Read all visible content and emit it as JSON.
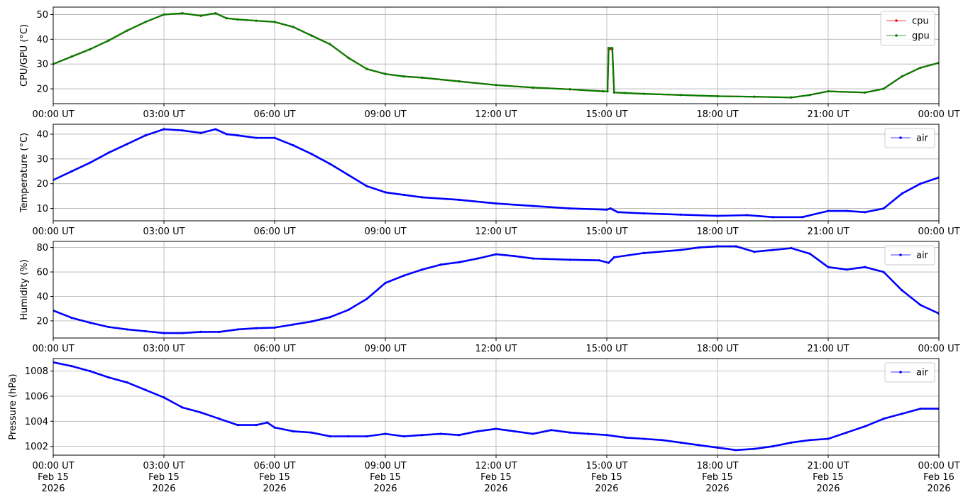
{
  "chart_data": [
    {
      "type": "line",
      "ylabel": "CPU/GPU (°C)",
      "ylim": [
        14,
        53
      ],
      "yticks": [
        20,
        30,
        40,
        50
      ],
      "grid": true,
      "legend_position": "top-right",
      "xlim_hours": [
        0,
        24
      ],
      "xtick_labels": [
        "00:00 UT",
        "03:00 UT",
        "06:00 UT",
        "09:00 UT",
        "12:00 UT",
        "15:00 UT",
        "18:00 UT",
        "21:00 UT",
        "00:00 UT"
      ],
      "series": [
        {
          "name": "cpu",
          "color": "#ff0000",
          "points": [
            [
              0,
              30
            ],
            [
              0.5,
              33
            ],
            [
              1,
              36
            ],
            [
              1.5,
              39.5
            ],
            [
              2,
              43.5
            ],
            [
              2.5,
              47
            ],
            [
              3,
              50
            ],
            [
              3.5,
              50.5
            ],
            [
              4,
              49.5
            ],
            [
              4.4,
              50.5
            ],
            [
              4.7,
              48.5
            ],
            [
              5,
              48
            ],
            [
              5.5,
              47.5
            ],
            [
              6,
              47
            ],
            [
              6.5,
              45
            ],
            [
              7,
              41.5
            ],
            [
              7.5,
              38
            ],
            [
              8,
              32.5
            ],
            [
              8.5,
              28
            ],
            [
              9,
              26
            ],
            [
              9.5,
              25
            ],
            [
              10,
              24.5
            ],
            [
              11,
              23
            ],
            [
              12,
              21.5
            ],
            [
              13,
              20.5
            ],
            [
              14,
              19.8
            ],
            [
              14.9,
              19
            ],
            [
              15.02,
              19
            ],
            [
              15.05,
              36
            ],
            [
              15.15,
              36
            ],
            [
              15.2,
              18.5
            ],
            [
              15.5,
              18.3
            ],
            [
              16,
              18
            ],
            [
              17,
              17.5
            ],
            [
              18,
              17
            ],
            [
              19,
              16.8
            ],
            [
              20,
              16.5
            ],
            [
              20.5,
              17.5
            ],
            [
              21,
              19
            ],
            [
              22,
              18.5
            ],
            [
              22.5,
              20
            ],
            [
              23,
              25
            ],
            [
              23.5,
              28.5
            ],
            [
              24,
              30.5
            ]
          ]
        },
        {
          "name": "gpu",
          "color": "#008000",
          "points": [
            [
              0,
              30
            ],
            [
              0.5,
              33
            ],
            [
              1,
              36
            ],
            [
              1.5,
              39.5
            ],
            [
              2,
              43.5
            ],
            [
              2.5,
              47
            ],
            [
              3,
              50
            ],
            [
              3.5,
              50.5
            ],
            [
              4,
              49.5
            ],
            [
              4.4,
              50.5
            ],
            [
              4.7,
              48.5
            ],
            [
              5,
              48
            ],
            [
              5.5,
              47.5
            ],
            [
              6,
              47
            ],
            [
              6.5,
              45
            ],
            [
              7,
              41.5
            ],
            [
              7.5,
              38
            ],
            [
              8,
              32.5
            ],
            [
              8.5,
              28
            ],
            [
              9,
              26
            ],
            [
              9.5,
              25
            ],
            [
              10,
              24.5
            ],
            [
              11,
              23
            ],
            [
              12,
              21.5
            ],
            [
              13,
              20.5
            ],
            [
              14,
              19.8
            ],
            [
              14.9,
              19
            ],
            [
              15.02,
              19
            ],
            [
              15.05,
              36.5
            ],
            [
              15.15,
              36.5
            ],
            [
              15.2,
              18.5
            ],
            [
              15.5,
              18.3
            ],
            [
              16,
              18
            ],
            [
              17,
              17.5
            ],
            [
              18,
              17
            ],
            [
              19,
              16.8
            ],
            [
              20,
              16.5
            ],
            [
              20.5,
              17.5
            ],
            [
              21,
              19
            ],
            [
              22,
              18.5
            ],
            [
              22.5,
              20
            ],
            [
              23,
              25
            ],
            [
              23.5,
              28.5
            ],
            [
              24,
              30.5
            ]
          ]
        }
      ]
    },
    {
      "type": "line",
      "ylabel": "Temperature (°C)",
      "ylim": [
        5,
        44
      ],
      "yticks": [
        10,
        20,
        30,
        40
      ],
      "grid": true,
      "legend_position": "top-right",
      "xlim_hours": [
        0,
        24
      ],
      "xtick_labels": [
        "00:00 UT",
        "03:00 UT",
        "06:00 UT",
        "09:00 UT",
        "12:00 UT",
        "15:00 UT",
        "18:00 UT",
        "21:00 UT",
        "00:00 UT"
      ],
      "series": [
        {
          "name": "air",
          "color": "#0000ff",
          "points": [
            [
              0,
              21.5
            ],
            [
              0.5,
              25
            ],
            [
              1,
              28.5
            ],
            [
              1.5,
              32.5
            ],
            [
              2,
              36
            ],
            [
              2.5,
              39.5
            ],
            [
              3,
              42
            ],
            [
              3.5,
              41.5
            ],
            [
              4,
              40.5
            ],
            [
              4.4,
              42
            ],
            [
              4.7,
              40
            ],
            [
              5,
              39.5
            ],
            [
              5.5,
              38.5
            ],
            [
              6,
              38.5
            ],
            [
              6.5,
              35.5
            ],
            [
              7,
              32
            ],
            [
              7.5,
              28
            ],
            [
              8,
              23.5
            ],
            [
              8.5,
              19
            ],
            [
              9,
              16.5
            ],
            [
              9.5,
              15.5
            ],
            [
              10,
              14.5
            ],
            [
              11,
              13.5
            ],
            [
              12,
              12
            ],
            [
              13,
              11
            ],
            [
              14,
              10
            ],
            [
              15,
              9.5
            ],
            [
              15.1,
              10
            ],
            [
              15.3,
              8.5
            ],
            [
              16,
              8
            ],
            [
              17,
              7.5
            ],
            [
              18,
              7
            ],
            [
              18.8,
              7.3
            ],
            [
              19.5,
              6.5
            ],
            [
              20.3,
              6.5
            ],
            [
              21,
              9
            ],
            [
              21.5,
              9
            ],
            [
              22,
              8.5
            ],
            [
              22.5,
              10
            ],
            [
              23,
              16
            ],
            [
              23.5,
              20
            ],
            [
              24,
              22.5
            ]
          ]
        }
      ]
    },
    {
      "type": "line",
      "ylabel": "Humidity (%)",
      "ylim": [
        6,
        85
      ],
      "yticks": [
        20,
        40,
        60,
        80
      ],
      "grid": true,
      "legend_position": "top-right",
      "xlim_hours": [
        0,
        24
      ],
      "xtick_labels": [
        "00:00 UT",
        "03:00 UT",
        "06:00 UT",
        "09:00 UT",
        "12:00 UT",
        "15:00 UT",
        "18:00 UT",
        "21:00 UT",
        "00:00 UT"
      ],
      "series": [
        {
          "name": "air",
          "color": "#0000ff",
          "points": [
            [
              0,
              28.5
            ],
            [
              0.5,
              22.5
            ],
            [
              1,
              18.5
            ],
            [
              1.5,
              15
            ],
            [
              2,
              13
            ],
            [
              2.5,
              11.5
            ],
            [
              3,
              10
            ],
            [
              3.5,
              10
            ],
            [
              4,
              11
            ],
            [
              4.5,
              11
            ],
            [
              5,
              13
            ],
            [
              5.5,
              14
            ],
            [
              6,
              14.5
            ],
            [
              6.5,
              17
            ],
            [
              7,
              19.5
            ],
            [
              7.5,
              23
            ],
            [
              8,
              29
            ],
            [
              8.5,
              38
            ],
            [
              9,
              51
            ],
            [
              9.5,
              57
            ],
            [
              10,
              62
            ],
            [
              10.5,
              66
            ],
            [
              11,
              68
            ],
            [
              11.5,
              71
            ],
            [
              12,
              74.5
            ],
            [
              12.5,
              73
            ],
            [
              13,
              71
            ],
            [
              14,
              70
            ],
            [
              14.8,
              69.5
            ],
            [
              15.05,
              67.5
            ],
            [
              15.2,
              72
            ],
            [
              16,
              75.5
            ],
            [
              17,
              78
            ],
            [
              17.5,
              80
            ],
            [
              18,
              81
            ],
            [
              18.5,
              81
            ],
            [
              19,
              76.5
            ],
            [
              19.5,
              78
            ],
            [
              20,
              79.5
            ],
            [
              20.5,
              75
            ],
            [
              21,
              64
            ],
            [
              21.5,
              62
            ],
            [
              22,
              64
            ],
            [
              22.5,
              60
            ],
            [
              23,
              45
            ],
            [
              23.5,
              33
            ],
            [
              24,
              26
            ]
          ]
        }
      ]
    },
    {
      "type": "line",
      "ylabel": "Pressure (hPa)",
      "ylim": [
        1001.3,
        1009.0
      ],
      "yticks": [
        1002,
        1004,
        1006,
        1008
      ],
      "grid": true,
      "legend_position": "top-right",
      "xlim_hours": [
        0,
        24
      ],
      "xtick_labels": [
        [
          "00:00 UT",
          "Feb 15",
          "2026"
        ],
        [
          "03:00 UT",
          "Feb 15",
          "2026"
        ],
        [
          "06:00 UT",
          "Feb 15",
          "2026"
        ],
        [
          "09:00 UT",
          "Feb 15",
          "2026"
        ],
        [
          "12:00 UT",
          "Feb 15",
          "2026"
        ],
        [
          "15:00 UT",
          "Feb 15",
          "2026"
        ],
        [
          "18:00 UT",
          "Feb 15",
          "2026"
        ],
        [
          "21:00 UT",
          "Feb 15",
          "2026"
        ],
        [
          "00:00 UT",
          "Feb 16",
          "2026"
        ]
      ],
      "series": [
        {
          "name": "air",
          "color": "#0000ff",
          "points": [
            [
              0,
              1008.7
            ],
            [
              0.5,
              1008.4
            ],
            [
              1,
              1008
            ],
            [
              1.5,
              1007.5
            ],
            [
              2,
              1007.1
            ],
            [
              2.5,
              1006.5
            ],
            [
              3,
              1005.9
            ],
            [
              3.5,
              1005.1
            ],
            [
              4,
              1004.7
            ],
            [
              4.5,
              1004.2
            ],
            [
              5,
              1003.7
            ],
            [
              5.5,
              1003.7
            ],
            [
              5.8,
              1003.9
            ],
            [
              6,
              1003.5
            ],
            [
              6.5,
              1003.2
            ],
            [
              7,
              1003.1
            ],
            [
              7.5,
              1002.8
            ],
            [
              8,
              1002.8
            ],
            [
              8.5,
              1002.8
            ],
            [
              9,
              1003
            ],
            [
              9.5,
              1002.8
            ],
            [
              10,
              1002.9
            ],
            [
              10.5,
              1003
            ],
            [
              11,
              1002.9
            ],
            [
              11.5,
              1003.2
            ],
            [
              12,
              1003.4
            ],
            [
              12.5,
              1003.2
            ],
            [
              13,
              1003
            ],
            [
              13.5,
              1003.3
            ],
            [
              14,
              1003.1
            ],
            [
              14.5,
              1003
            ],
            [
              15,
              1002.9
            ],
            [
              15.5,
              1002.7
            ],
            [
              16,
              1002.6
            ],
            [
              16.5,
              1002.5
            ],
            [
              17,
              1002.3
            ],
            [
              17.5,
              1002.1
            ],
            [
              18,
              1001.9
            ],
            [
              18.5,
              1001.7
            ],
            [
              19,
              1001.8
            ],
            [
              19.5,
              1002
            ],
            [
              20,
              1002.3
            ],
            [
              20.5,
              1002.5
            ],
            [
              21,
              1002.6
            ],
            [
              21.5,
              1003.1
            ],
            [
              22,
              1003.6
            ],
            [
              22.5,
              1004.2
            ],
            [
              23,
              1004.6
            ],
            [
              23.5,
              1005
            ],
            [
              24,
              1005
            ]
          ]
        }
      ]
    }
  ]
}
